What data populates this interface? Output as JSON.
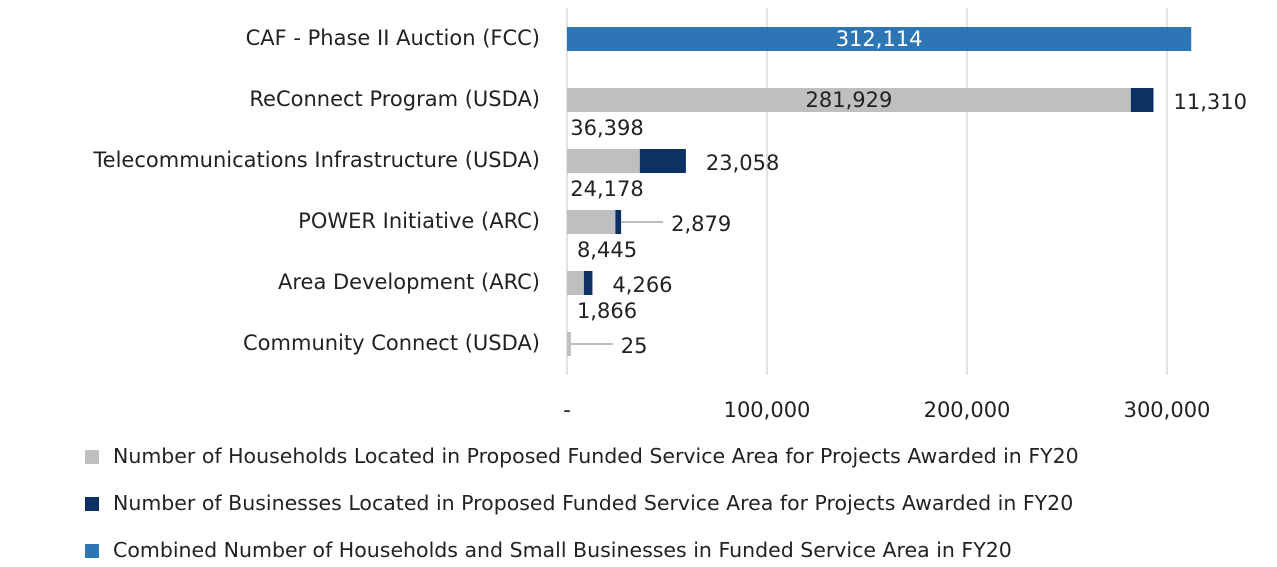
{
  "chart_data": {
    "type": "stacked-bar-horizontal",
    "categories": [
      "CAF - Phase II Auction (FCC)",
      "ReConnect Program (USDA)",
      "Telecommunications Infrastructure (USDA)",
      "POWER Initiative (ARC)",
      "Area Development (ARC)",
      "Community Connect (USDA)"
    ],
    "series": [
      {
        "name": "Number of Households Located in Proposed Funded Service Area for Projects Awarded in FY20",
        "color": "#bfbfbf",
        "values": [
          null,
          281929,
          36398,
          24178,
          8445,
          1866
        ],
        "value_labels": [
          null,
          "281,929",
          "36,398",
          "24,178",
          "8,445",
          "1,866"
        ]
      },
      {
        "name": "Number of Businesses Located in Proposed Funded Service Area for Projects Awarded in FY20",
        "color": "#0e3163",
        "values": [
          null,
          11310,
          23058,
          2879,
          4266,
          25
        ],
        "value_labels": [
          null,
          "11,310",
          "23,058",
          "2,879",
          "4,266",
          "25"
        ]
      },
      {
        "name": "Combined Number of Households and Small Businesses in Funded Service Area in FY20",
        "color": "#2e75b6",
        "values": [
          312114,
          null,
          null,
          null,
          null,
          null
        ],
        "value_labels": [
          "312,114",
          null,
          null,
          null,
          null,
          null
        ]
      }
    ],
    "xlim": [
      0,
      340000
    ],
    "xticks": [
      {
        "value": 0,
        "label": "-"
      },
      {
        "value": 100000,
        "label": "100,000"
      },
      {
        "value": 200000,
        "label": "200,000"
      },
      {
        "value": 300000,
        "label": "300,000"
      }
    ],
    "grid": true
  }
}
